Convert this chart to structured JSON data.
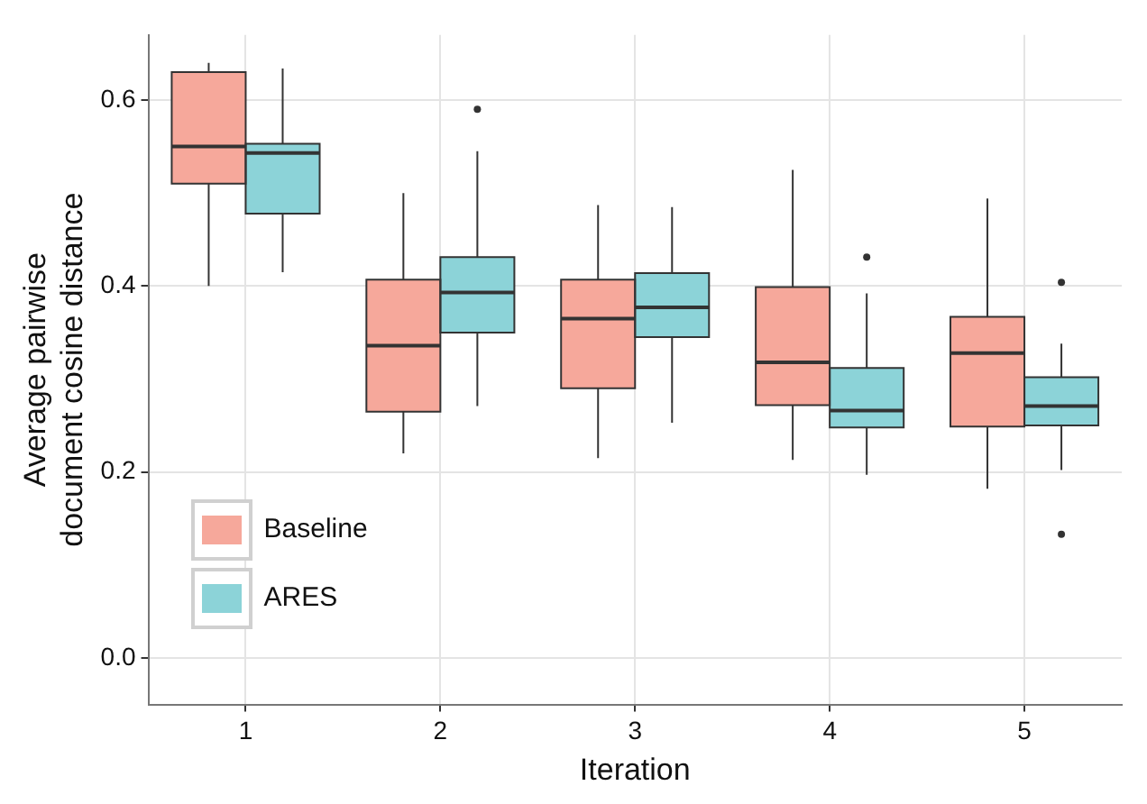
{
  "chart_data": {
    "type": "box",
    "xlabel": "Iteration",
    "ylabel": "Average pairwise\ndocument cosine distance",
    "categories": [
      "1",
      "2",
      "3",
      "4",
      "5"
    ],
    "series": [
      {
        "name": "Baseline",
        "color": "#f6a89b",
        "boxes": [
          {
            "low": 0.4,
            "q1": 0.51,
            "median": 0.55,
            "q3": 0.63,
            "high": 0.64
          },
          {
            "low": 0.22,
            "q1": 0.265,
            "median": 0.336,
            "q3": 0.407,
            "high": 0.5
          },
          {
            "low": 0.215,
            "q1": 0.29,
            "median": 0.365,
            "q3": 0.407,
            "high": 0.487
          },
          {
            "low": 0.213,
            "q1": 0.272,
            "median": 0.318,
            "q3": 0.399,
            "high": 0.525
          },
          {
            "low": 0.182,
            "q1": 0.249,
            "median": 0.328,
            "q3": 0.367,
            "high": 0.494
          }
        ]
      },
      {
        "name": "ARES",
        "color": "#8cd3d8",
        "boxes": [
          {
            "low": 0.415,
            "q1": 0.478,
            "median": 0.543,
            "q3": 0.553,
            "high": 0.634
          },
          {
            "low": 0.271,
            "q1": 0.35,
            "median": 0.393,
            "q3": 0.431,
            "high": 0.545,
            "outliers": [
              0.59
            ]
          },
          {
            "low": 0.253,
            "q1": 0.345,
            "median": 0.377,
            "q3": 0.414,
            "high": 0.485
          },
          {
            "low": 0.197,
            "q1": 0.248,
            "median": 0.266,
            "q3": 0.312,
            "high": 0.392,
            "outliers": [
              0.431
            ]
          },
          {
            "low": 0.202,
            "q1": 0.25,
            "median": 0.271,
            "q3": 0.302,
            "high": 0.338,
            "outliers": [
              0.404,
              0.133
            ]
          }
        ]
      }
    ],
    "ylim": [
      -0.05,
      0.67
    ],
    "yticks": [
      {
        "value": 0,
        "label": "0.0"
      },
      {
        "value": 0.2,
        "label": "0.2"
      },
      {
        "value": 0.4,
        "label": "0.4"
      },
      {
        "value": 0.6,
        "label": "0.6"
      }
    ],
    "grid": true,
    "legend": "bottom left"
  }
}
